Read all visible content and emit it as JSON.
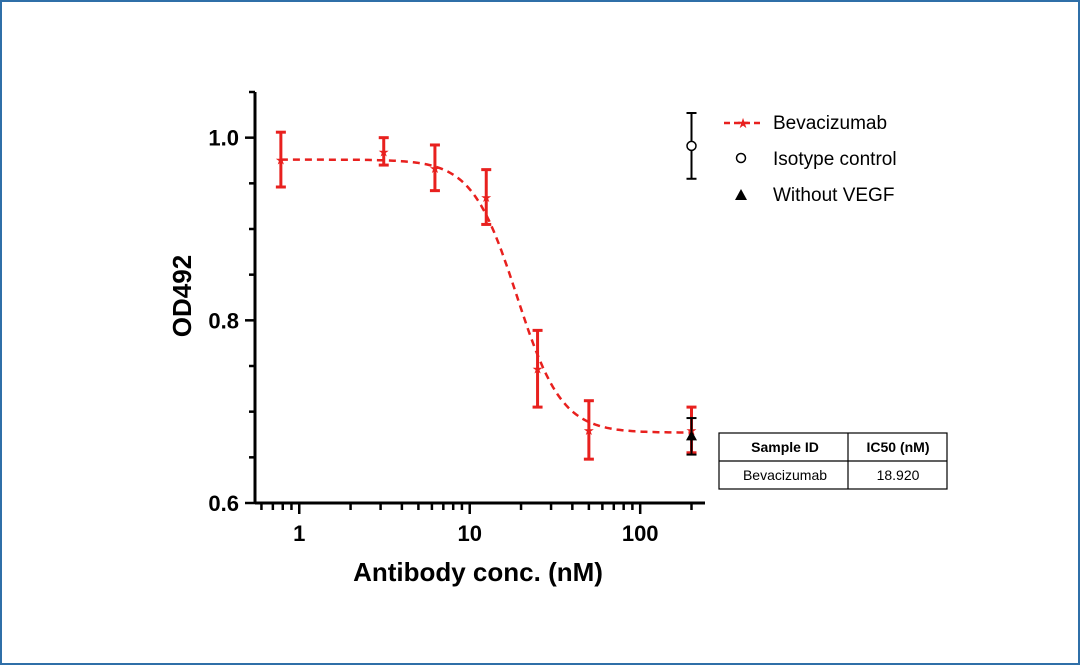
{
  "chart_data": {
    "type": "scatter",
    "xlabel": "Antibody conc. (nM)",
    "ylabel": "OD492",
    "x_scale": "log",
    "xlim": [
      0.55,
      240
    ],
    "ylim": [
      0.6,
      1.05
    ],
    "x_ticks": [
      1,
      10,
      100
    ],
    "x_tick_labels": [
      "1",
      "10",
      "100"
    ],
    "y_ticks": [
      0.6,
      0.8,
      1.0
    ],
    "y_tick_labels": [
      "0.6",
      "0.8",
      "1.0"
    ],
    "legend_position": "top-right",
    "series": [
      {
        "name": "Bevacizumab",
        "color": "#e8201e",
        "marker": "star",
        "line": "dashed-fit",
        "x": [
          0.78,
          3.13,
          6.25,
          12.5,
          25,
          50,
          200
        ],
        "y": [
          0.976,
          0.985,
          0.967,
          0.935,
          0.747,
          0.68,
          0.68
        ],
        "err": [
          0.03,
          0.015,
          0.025,
          0.03,
          0.042,
          0.032,
          0.025
        ]
      },
      {
        "name": "Isotype control",
        "color": "#000000",
        "marker": "open-circle",
        "x": [
          200
        ],
        "y": [
          0.991
        ],
        "err": [
          0.036
        ]
      },
      {
        "name": "Without VEGF",
        "color": "#000000",
        "marker": "filled-triangle",
        "x": [
          200
        ],
        "y": [
          0.673
        ],
        "err": [
          0.02
        ]
      }
    ],
    "fit": {
      "top": 0.976,
      "bottom": 0.677,
      "ic50": 18.92,
      "hill": 3.3
    },
    "table": {
      "headers": [
        "Sample ID",
        "IC50 (nM)"
      ],
      "rows": [
        [
          "Bevacizumab",
          "18.920"
        ]
      ]
    }
  }
}
